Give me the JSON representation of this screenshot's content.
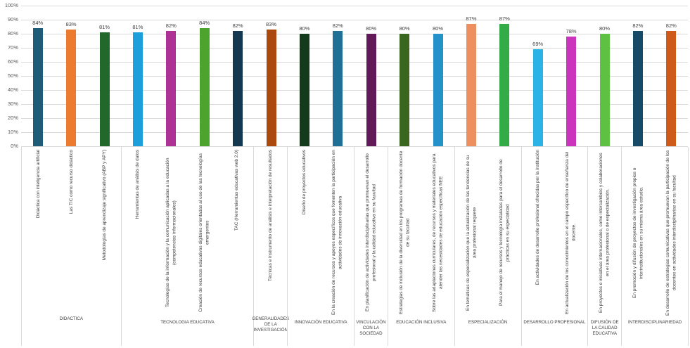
{
  "chart_data": {
    "type": "bar",
    "title": "",
    "xlabel": "",
    "ylabel": "",
    "ylim": [
      0,
      100
    ],
    "ytick_step": 10,
    "grid": true,
    "legend": "none",
    "yticks": [
      "0%",
      "10%",
      "20%",
      "30%",
      "40%",
      "50%",
      "60%",
      "70%",
      "80%",
      "90%",
      "100%"
    ],
    "groups": [
      {
        "label": "DIDACTICA",
        "bars": [
          {
            "label": "Didáctica con inteligencia artificial",
            "value": 84,
            "display": "84%",
            "color": "#1F5C78"
          },
          {
            "label": "Las TIC como recurso didáctico",
            "value": 83,
            "display": "83%",
            "color": "#EC7B30"
          },
          {
            "label": "Metodologías de aprendizaje significativo (ABP y APY)",
            "value": 81,
            "display": "81%",
            "color": "#21682A"
          }
        ]
      },
      {
        "label": "TECNOLOGIA EDUCATIVA",
        "bars": [
          {
            "label": "Herramientas de análisis de datos",
            "value": 81,
            "display": "81%",
            "color": "#1BA0DC"
          },
          {
            "label": "Tecnologías de la información y la comunicación aplicadas a la educación (competencias informacionales)",
            "value": 82,
            "display": "82%",
            "color": "#AE3195"
          },
          {
            "label": "Creación de recursos educativos digitales orientadas al uso de las tecnologías emergentes",
            "value": 84,
            "display": "84%",
            "color": "#4CA42F"
          },
          {
            "label": "TAC (Herramientas educativas web 2.0)",
            "value": 82,
            "display": "82%",
            "color": "#14384F"
          }
        ]
      },
      {
        "label": "GENERALIDADES DE LA INVESTIGACIÓN",
        "bars": [
          {
            "label": "Técnicas e instrumento de análisis e interpretación de resultados",
            "value": 83,
            "display": "83%",
            "color": "#AC490F"
          }
        ]
      },
      {
        "label": "INNOVACIÓN EDUCATIVA",
        "bars": [
          {
            "label": "Diseño de proyectos educativos",
            "value": 80,
            "display": "80%",
            "color": "#14391B"
          },
          {
            "label": "En la creación de recursos y apoyos específicos que fomenten la participación en actividades de innovación educativa",
            "value": 82,
            "display": "82%",
            "color": "#1F6F96"
          }
        ]
      },
      {
        "label": "VINCULACIÓN CON LA SOCIEDAD",
        "bars": [
          {
            "label": "En planificación de actividades interdisciplinarias que promuevan el desarrollo profesional y la calidad educativa en su facultad",
            "value": 80,
            "display": "80%",
            "color": "#611958"
          }
        ]
      },
      {
        "label": "EDUCACIÓN INCLUSIVA",
        "bars": [
          {
            "label": "Estrategias de inclusión de la diversidad en los programas de formación docente de su facultad",
            "value": 80,
            "display": "80%",
            "color": "#3A661F"
          },
          {
            "label": "Sobre las adaptaciones curriculares, de recursos y materiales educativos para atender las necesidades de educación específicas NEE",
            "value": 80,
            "display": "80%",
            "color": "#2492C8"
          }
        ]
      },
      {
        "label": "ESPECIALIZACIÓN",
        "bars": [
          {
            "label": "En temáticas de especialización que la actualización de las tendencias de su área profesional requiere",
            "value": 87,
            "display": "87%",
            "color": "#EE8F60"
          },
          {
            "label": "Para el manejo de recursos y tecnología instaladas para el desarrollo de prácticas en su especialidad",
            "value": 87,
            "display": "87%",
            "color": "#33AB47"
          }
        ]
      },
      {
        "label": "DESARROLLO PROFESIONAL",
        "bars": [
          {
            "label": "En actividades de desarrollo profesional ofrecidas por la institución",
            "value": 69,
            "display": "69%",
            "color": "#2BB3E8"
          },
          {
            "label": "En actualización de los conocimientos en el campo específico de enseñanza del docente.",
            "value": 78,
            "display": "78%",
            "color": "#CB35BE"
          }
        ]
      },
      {
        "label": "DIFUSIÓN DE LA CALIDAD EDUCATIVA",
        "bars": [
          {
            "label": "En proyectos e iniciativas internacionales, como intercambios y colaboraciones en el área profesional o de especialización.",
            "value": 80,
            "display": "80%",
            "color": "#5DC242"
          }
        ]
      },
      {
        "label": "INTERDISCIPLINARIEDAD",
        "bars": [
          {
            "label": "En promoción y difusión de proyectos de investigación propios o interinstitucionales en su misma área estudio.",
            "value": 82,
            "display": "82%",
            "color": "#174A66"
          },
          {
            "label": "En desarrollo de estrategias comunicativas que promuevan la participación de los docentes en actividades interdisciplinarias en su facultad",
            "value": 82,
            "display": "82%",
            "color": "#CE5B1A"
          }
        ]
      }
    ],
    "colors": {
      "background": "#FFFFFF",
      "gridline": "#D9D9D9",
      "divider": "#D9D9D9",
      "axis_text": "#595959",
      "value_text": "#404040",
      "category_text": "#404040"
    }
  }
}
